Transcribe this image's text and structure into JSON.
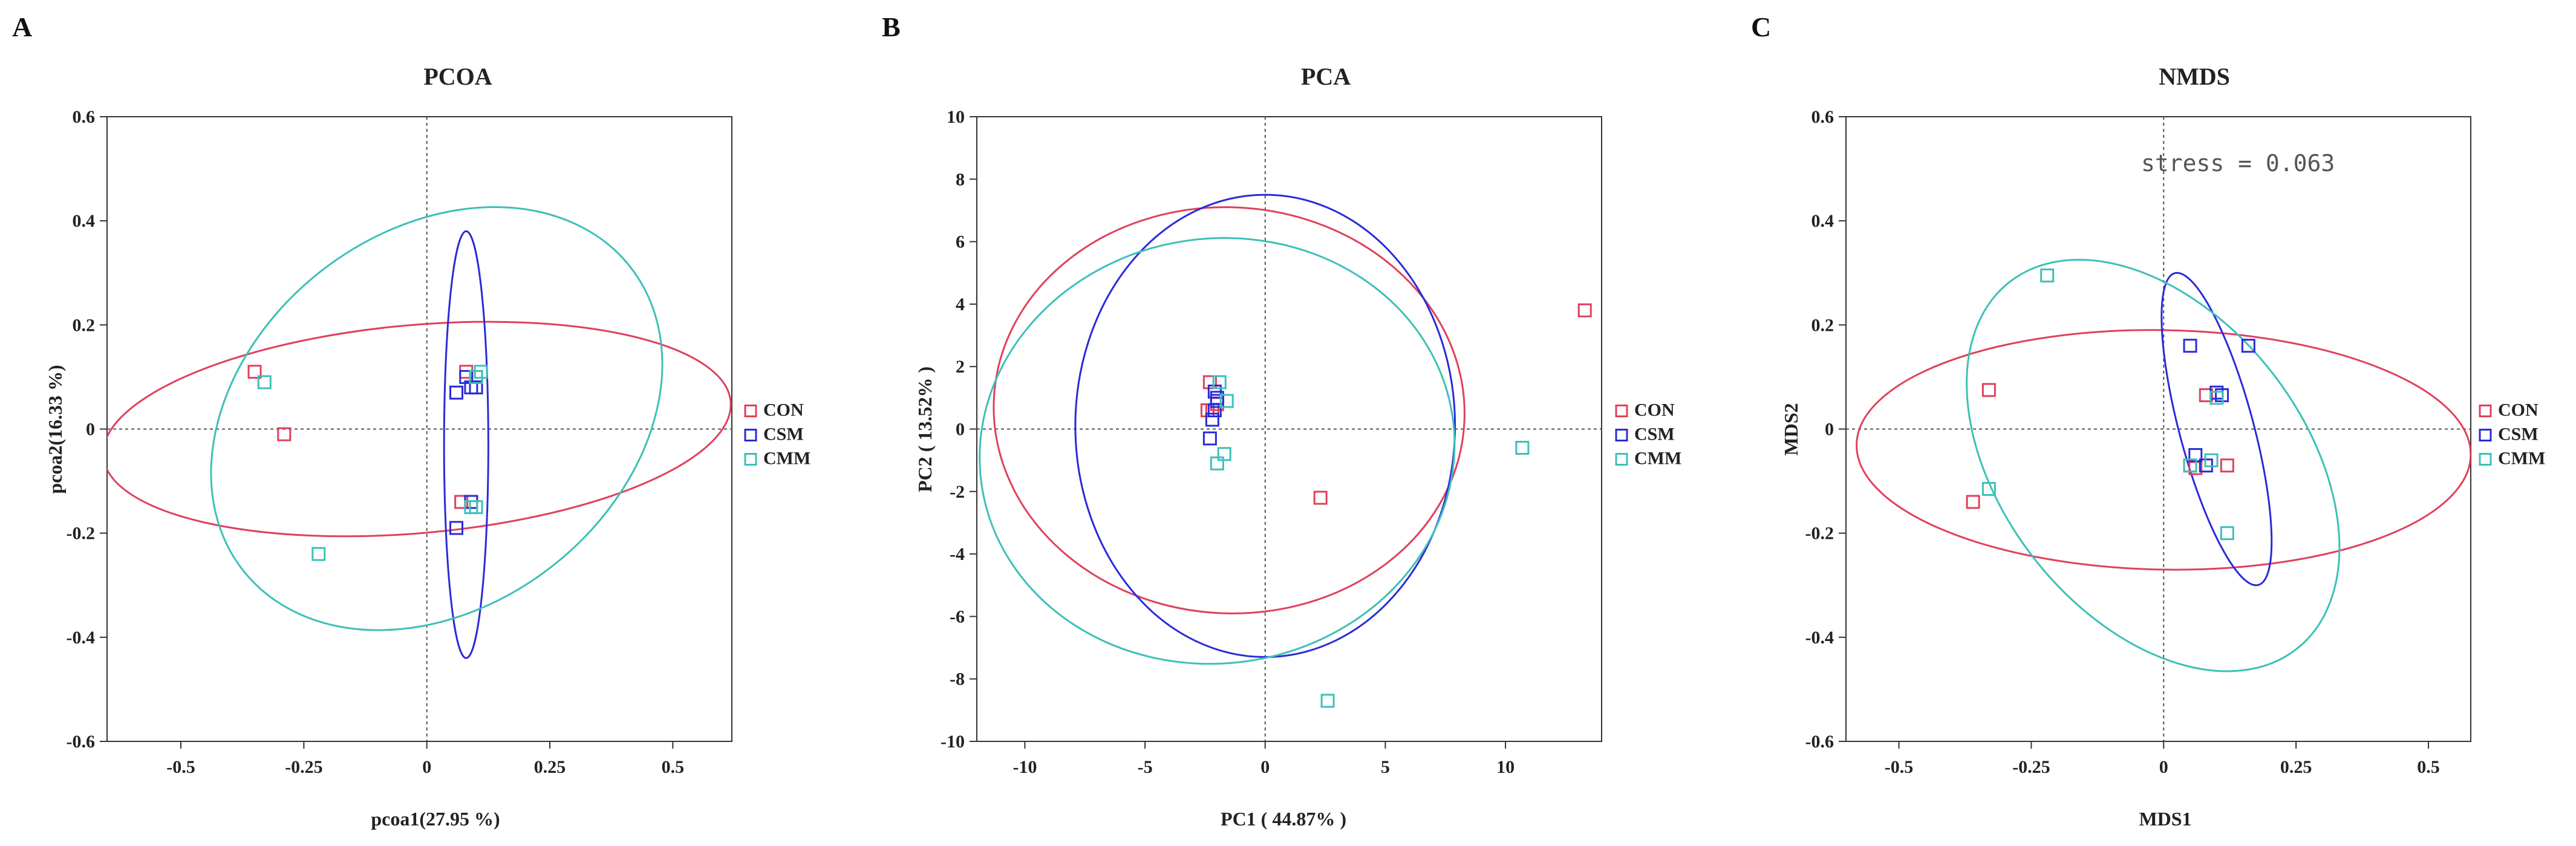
{
  "colors": {
    "CON": "#e0405a",
    "CSM": "#2a2ad8",
    "CMM": "#3cc0b8"
  },
  "chart_data": [
    {
      "type": "scatter",
      "panel": "A",
      "title": "PCOA",
      "xlabel": "pcoa1(27.95 %)",
      "ylabel": "pcoa2(16.33 %)",
      "xlim": [
        -0.65,
        0.62
      ],
      "ylim": [
        -0.6,
        0.6
      ],
      "xticks": [
        -0.5,
        -0.25,
        0,
        0.25,
        0.5
      ],
      "xtick_labels": [
        "-0.5",
        "-0.25",
        "0",
        "0.25",
        "0.5"
      ],
      "yticks": [
        -0.6,
        -0.4,
        -0.2,
        0,
        0.2,
        0.4,
        0.6
      ],
      "ytick_labels": [
        "-0.6",
        "-0.4",
        "-0.2",
        "0",
        "0.2",
        "0.4",
        "0.6"
      ],
      "annotation": "",
      "legend": [
        "CON",
        "CSM",
        "CMM"
      ],
      "series": [
        {
          "name": "CON",
          "points": [
            [
              -0.35,
              0.11
            ],
            [
              -0.29,
              -0.01
            ],
            [
              0.08,
              0.11
            ],
            [
              0.1,
              0.1
            ],
            [
              0.07,
              -0.14
            ],
            [
              0.09,
              -0.14
            ]
          ],
          "ellipse": {
            "cx": -0.02,
            "cy": 0.0,
            "rx": 0.64,
            "ry": 0.2,
            "angle": 5
          }
        },
        {
          "name": "CSM",
          "points": [
            [
              0.06,
              0.07
            ],
            [
              0.08,
              0.1
            ],
            [
              0.1,
              0.08
            ],
            [
              0.09,
              0.08
            ],
            [
              0.06,
              -0.19
            ],
            [
              0.09,
              -0.14
            ]
          ],
          "ellipse": {
            "cx": 0.08,
            "cy": -0.03,
            "rx": 0.045,
            "ry": 0.41,
            "angle": 0
          }
        },
        {
          "name": "CMM",
          "points": [
            [
              -0.33,
              0.09
            ],
            [
              -0.22,
              -0.24
            ],
            [
              0.11,
              0.11
            ],
            [
              0.1,
              0.1
            ],
            [
              0.1,
              -0.15
            ],
            [
              0.09,
              -0.15
            ]
          ],
          "ellipse": {
            "cx": 0.02,
            "cy": 0.02,
            "rx": 0.5,
            "ry": 0.36,
            "angle": 38
          }
        }
      ]
    },
    {
      "type": "scatter",
      "panel": "B",
      "title": "PCA",
      "xlabel": "PC1 ( 44.87% )",
      "ylabel": "PC2 ( 13.52% )",
      "xlim": [
        -12,
        14
      ],
      "ylim": [
        -10,
        10
      ],
      "xticks": [
        -10,
        -5,
        0,
        5,
        10
      ],
      "xtick_labels": [
        "-10",
        "-5",
        "0",
        "5",
        "10"
      ],
      "yticks": [
        -10,
        -8,
        -6,
        -4,
        -2,
        0,
        2,
        4,
        6,
        8,
        10
      ],
      "ytick_labels": [
        "-10",
        "-8",
        "-6",
        "-4",
        "-2",
        "0",
        "2",
        "4",
        "6",
        "8",
        "10"
      ],
      "annotation": "",
      "legend": [
        "CON",
        "CSM",
        "CMM"
      ],
      "series": [
        {
          "name": "CON",
          "points": [
            [
              13.3,
              3.8
            ],
            [
              2.3,
              -2.2
            ],
            [
              -2.3,
              1.5
            ],
            [
              -2.2,
              0.6
            ],
            [
              -2.4,
              0.6
            ],
            [
              -2.0,
              0.8
            ]
          ],
          "ellipse": {
            "cx": -1.5,
            "cy": 0.6,
            "rx": 9.8,
            "ry": 6.5,
            "angle": -3
          }
        },
        {
          "name": "CSM",
          "points": [
            [
              -2.1,
              1.2
            ],
            [
              -2.0,
              0.9
            ],
            [
              -2.2,
              0.3
            ],
            [
              -2.3,
              -0.3
            ],
            [
              -2.0,
              1.0
            ],
            [
              -2.1,
              0.6
            ]
          ],
          "ellipse": {
            "cx": 0.0,
            "cy": 0.1,
            "rx": 7.9,
            "ry": 7.4,
            "angle": 0
          }
        },
        {
          "name": "CMM",
          "points": [
            [
              10.7,
              -0.6
            ],
            [
              2.6,
              -8.7
            ],
            [
              -1.9,
              1.5
            ],
            [
              -1.7,
              -0.8
            ],
            [
              -1.6,
              0.9
            ],
            [
              -2.0,
              -1.1
            ]
          ],
          "ellipse": {
            "cx": -2.0,
            "cy": -0.7,
            "rx": 9.9,
            "ry": 6.8,
            "angle": 8
          }
        }
      ]
    },
    {
      "type": "scatter",
      "panel": "C",
      "title": "NMDS",
      "xlabel": "MDS1",
      "ylabel": "MDS2",
      "xlim": [
        -0.6,
        0.58
      ],
      "ylim": [
        -0.6,
        0.6
      ],
      "xticks": [
        -0.5,
        -0.25,
        0,
        0.25,
        0.5
      ],
      "xtick_labels": [
        "-0.5",
        "-0.25",
        "0",
        "0.25",
        "0.5"
      ],
      "yticks": [
        -0.6,
        -0.4,
        -0.2,
        0,
        0.2,
        0.4,
        0.6
      ],
      "ytick_labels": [
        "-0.6",
        "-0.4",
        "-0.2",
        "0",
        "0.2",
        "0.4",
        "0.6"
      ],
      "annotation": "stress = 0.063",
      "legend": [
        "CON",
        "CSM",
        "CMM"
      ],
      "series": [
        {
          "name": "CON",
          "points": [
            [
              -0.33,
              0.075
            ],
            [
              -0.36,
              -0.14
            ],
            [
              0.08,
              0.065
            ],
            [
              0.12,
              -0.07
            ],
            [
              0.06,
              -0.075
            ],
            [
              0.05,
              -0.07
            ]
          ],
          "ellipse": {
            "cx": 0.0,
            "cy": -0.04,
            "rx": 0.58,
            "ry": 0.23,
            "angle": -1
          }
        },
        {
          "name": "CSM",
          "points": [
            [
              0.05,
              0.16
            ],
            [
              0.16,
              0.16
            ],
            [
              0.1,
              0.07
            ],
            [
              0.11,
              0.065
            ],
            [
              0.06,
              -0.05
            ],
            [
              0.08,
              -0.07
            ]
          ],
          "ellipse": {
            "cx": 0.1,
            "cy": 0.0,
            "rx": 0.07,
            "ry": 0.31,
            "angle": 15
          }
        },
        {
          "name": "CMM",
          "points": [
            [
              -0.22,
              0.295
            ],
            [
              -0.33,
              -0.115
            ],
            [
              0.12,
              -0.2
            ],
            [
              0.09,
              -0.06
            ],
            [
              0.05,
              -0.07
            ],
            [
              0.1,
              0.06
            ]
          ],
          "ellipse": {
            "cx": -0.02,
            "cy": -0.07,
            "rx": 0.44,
            "ry": 0.29,
            "angle": -52
          }
        }
      ]
    }
  ]
}
